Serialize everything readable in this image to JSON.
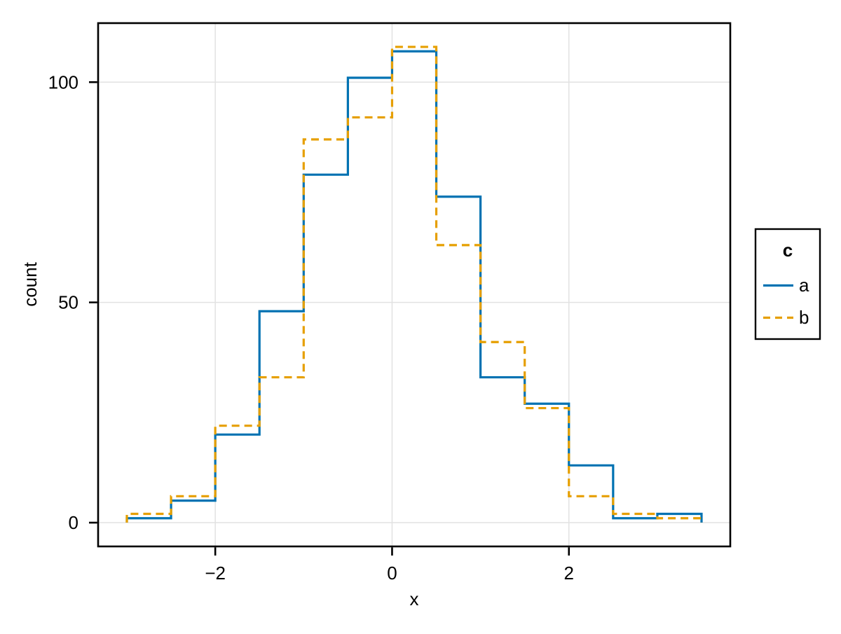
{
  "figure": {
    "background": "#ffffff",
    "title": ""
  },
  "chart_data": {
    "type": "line",
    "subtype": "step-histogram (stairs outline of binned counts)",
    "title": "",
    "xlabel": "x",
    "ylabel": "count",
    "bin_width": 0.5,
    "bin_edges": [
      -3.0,
      -2.5,
      -2.0,
      -1.5,
      -1.0,
      -0.5,
      0.0,
      0.5,
      1.0,
      1.5,
      2.0,
      2.5,
      3.0,
      3.5
    ],
    "series": [
      {
        "name": "a",
        "color": "#0072B2",
        "line_style": "solid",
        "counts": [
          1,
          5,
          20,
          48,
          79,
          101,
          107,
          74,
          33,
          27,
          13,
          1,
          2
        ]
      },
      {
        "name": "b",
        "color": "#E69F00",
        "line_style": "dashed",
        "counts": [
          2,
          6,
          22,
          33,
          87,
          92,
          108,
          63,
          41,
          26,
          6,
          2,
          1
        ]
      }
    ],
    "x_ticks": {
      "values": [
        -2,
        0,
        2
      ],
      "labels": [
        "−2",
        "0",
        "2"
      ]
    },
    "y_ticks": {
      "values": [
        0,
        50,
        100
      ],
      "labels": [
        "0",
        "50",
        "100"
      ]
    },
    "x_range": [
      -3.325,
      3.825
    ],
    "y_range": [
      -5.4,
      113.4
    ],
    "grid": true,
    "grid_color": "#e2e2e2",
    "legend": {
      "title": "c",
      "position": "right-outside",
      "entries": [
        {
          "label": "a",
          "line_style": "solid"
        },
        {
          "label": "b",
          "line_style": "dashed"
        }
      ]
    }
  }
}
